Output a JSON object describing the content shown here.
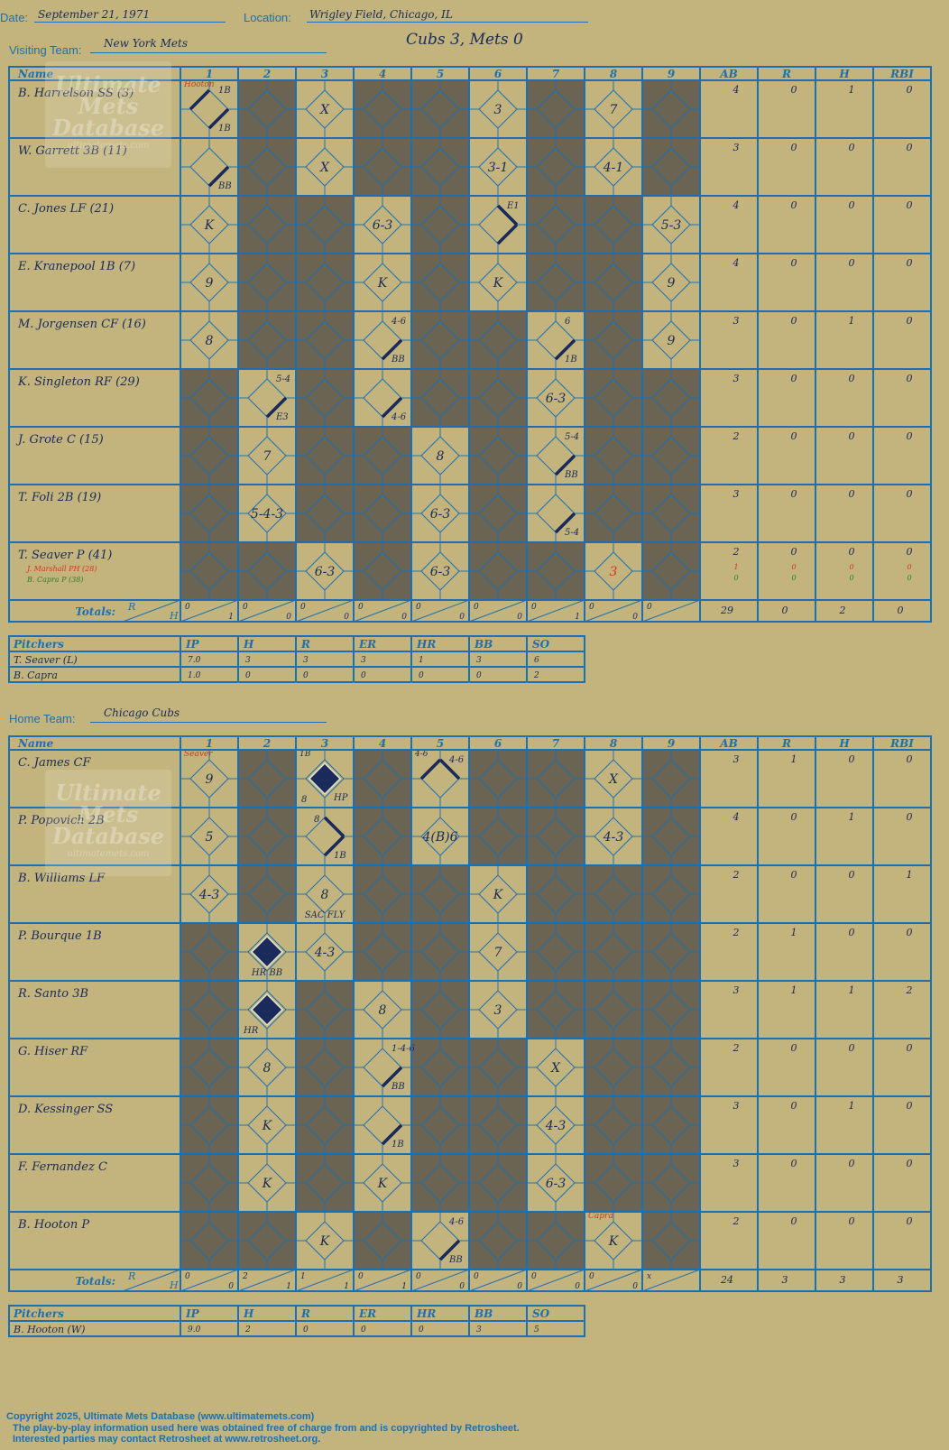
{
  "header": {
    "date_label": "Date:",
    "date": "September 21, 1971",
    "location_label": "Location:",
    "location": "Wrigley Field, Chicago, IL",
    "visiting_label": "Visiting Team:",
    "visiting_team": "New York Mets",
    "result": "Cubs 3, Mets 0",
    "home_label": "Home Team:",
    "home_team": "Chicago Cubs"
  },
  "grid_header": {
    "name": "Name",
    "innings": [
      "1",
      "2",
      "3",
      "4",
      "5",
      "6",
      "7",
      "8",
      "9"
    ],
    "stats": [
      "AB",
      "R",
      "H",
      "RBI"
    ],
    "totals_label": "Totals:",
    "r": "R",
    "h": "H"
  },
  "pitcher_header": {
    "label": "Pitchers",
    "cols": [
      "IP",
      "H",
      "R",
      "ER",
      "HR",
      "BB",
      "SO"
    ]
  },
  "watermark": {
    "line1": "Ultimate",
    "line2": "Mets",
    "line3": "Database",
    "url": "ultimatemets.com"
  },
  "visitors": {
    "players": [
      {
        "name": "B. Harrelson SS (3)",
        "stats": [
          "4",
          "0",
          "1",
          "0"
        ]
      },
      {
        "name": "W. Garrett 3B (11)",
        "stats": [
          "3",
          "0",
          "0",
          "0"
        ]
      },
      {
        "name": "C. Jones LF (21)",
        "stats": [
          "4",
          "0",
          "0",
          "0"
        ]
      },
      {
        "name": "E. Kranepool 1B (7)",
        "stats": [
          "4",
          "0",
          "0",
          "0"
        ]
      },
      {
        "name": "M. Jorgensen CF (16)",
        "stats": [
          "3",
          "0",
          "1",
          "0"
        ]
      },
      {
        "name": "K. Singleton RF (29)",
        "stats": [
          "3",
          "0",
          "0",
          "0"
        ]
      },
      {
        "name": "J. Grote C (15)",
        "stats": [
          "2",
          "0",
          "0",
          "0"
        ]
      },
      {
        "name": "T. Foli 2B (19)",
        "stats": [
          "3",
          "0",
          "0",
          "0"
        ]
      },
      {
        "name": "T. Seaver P (41)",
        "stats": [
          "2",
          "0",
          "0",
          "0"
        ],
        "subs": [
          {
            "name": "J. Marshall PH (28)",
            "stats": [
              "1",
              "0",
              "0",
              "0"
            ]
          },
          {
            "name": "B. Capra P (38)",
            "stats": [
              "0",
              "0",
              "0",
              "0"
            ]
          }
        ]
      }
    ],
    "active_cells": [
      [
        1,
        3,
        6,
        8
      ],
      [
        1,
        3,
        6,
        8
      ],
      [
        1,
        4,
        6,
        9
      ],
      [
        1,
        4,
        6,
        9
      ],
      [
        1,
        4,
        7,
        9
      ],
      [
        2,
        4,
        7
      ],
      [
        2,
        5,
        7
      ],
      [
        2,
        5,
        7
      ],
      [
        3,
        5,
        8
      ]
    ],
    "plays": [
      {
        "r": 0,
        "c": 1,
        "t": "Hooton",
        "pos": "tl",
        "red": true
      },
      {
        "r": 0,
        "c": 1,
        "t": "1B",
        "pos": "tr"
      },
      {
        "r": 0,
        "c": 1,
        "t": "1B",
        "pos": "br"
      },
      {
        "r": 0,
        "c": 3,
        "t": "X",
        "pos": "c"
      },
      {
        "r": 0,
        "c": 6,
        "t": "3",
        "pos": "c"
      },
      {
        "r": 0,
        "c": 8,
        "t": "7",
        "pos": "c"
      },
      {
        "r": 1,
        "c": 1,
        "t": "BB",
        "pos": "br"
      },
      {
        "r": 1,
        "c": 3,
        "t": "X",
        "pos": "c"
      },
      {
        "r": 1,
        "c": 6,
        "t": "3-1",
        "pos": "c"
      },
      {
        "r": 1,
        "c": 8,
        "t": "4-1",
        "pos": "c"
      },
      {
        "r": 2,
        "c": 1,
        "t": "K",
        "pos": "c"
      },
      {
        "r": 2,
        "c": 4,
        "t": "6-3",
        "pos": "c"
      },
      {
        "r": 2,
        "c": 6,
        "t": "E1",
        "pos": "tr"
      },
      {
        "r": 2,
        "c": 9,
        "t": "5-3",
        "pos": "c"
      },
      {
        "r": 3,
        "c": 1,
        "t": "9",
        "pos": "c"
      },
      {
        "r": 3,
        "c": 4,
        "t": "K",
        "pos": "c"
      },
      {
        "r": 3,
        "c": 6,
        "t": "K",
        "pos": "c"
      },
      {
        "r": 3,
        "c": 9,
        "t": "9",
        "pos": "c"
      },
      {
        "r": 4,
        "c": 1,
        "t": "8",
        "pos": "c"
      },
      {
        "r": 4,
        "c": 4,
        "t": "4-6",
        "pos": "tr"
      },
      {
        "r": 4,
        "c": 4,
        "t": "BB",
        "pos": "br"
      },
      {
        "r": 4,
        "c": 7,
        "t": "6",
        "pos": "tr"
      },
      {
        "r": 4,
        "c": 7,
        "t": "1B",
        "pos": "br"
      },
      {
        "r": 4,
        "c": 9,
        "t": "9",
        "pos": "c"
      },
      {
        "r": 5,
        "c": 2,
        "t": "5-4",
        "pos": "tr"
      },
      {
        "r": 5,
        "c": 2,
        "t": "E3",
        "pos": "br"
      },
      {
        "r": 5,
        "c": 4,
        "t": "4-6",
        "pos": "br"
      },
      {
        "r": 5,
        "c": 7,
        "t": "6-3",
        "pos": "c"
      },
      {
        "r": 6,
        "c": 2,
        "t": "7",
        "pos": "c"
      },
      {
        "r": 6,
        "c": 5,
        "t": "8",
        "pos": "c"
      },
      {
        "r": 6,
        "c": 7,
        "t": "5-4",
        "pos": "tr"
      },
      {
        "r": 6,
        "c": 7,
        "t": "BB",
        "pos": "br"
      },
      {
        "r": 7,
        "c": 2,
        "t": "5-4-3",
        "pos": "c"
      },
      {
        "r": 7,
        "c": 5,
        "t": "6-3",
        "pos": "c"
      },
      {
        "r": 7,
        "c": 7,
        "t": "5-4",
        "pos": "br"
      },
      {
        "r": 8,
        "c": 3,
        "t": "6-3",
        "pos": "c"
      },
      {
        "r": 8,
        "c": 5,
        "t": "6-3",
        "pos": "c"
      },
      {
        "r": 8,
        "c": 8,
        "t": "3",
        "pos": "c",
        "red": true
      }
    ],
    "path_lines": [
      {
        "r": 0,
        "c": 1,
        "seg": "13"
      },
      {
        "r": 1,
        "c": 1,
        "seg": "1"
      },
      {
        "r": 2,
        "c": 6,
        "seg": "12"
      },
      {
        "r": 4,
        "c": 4,
        "seg": "1"
      },
      {
        "r": 4,
        "c": 7,
        "seg": "1"
      },
      {
        "r": 5,
        "c": 2,
        "seg": "1"
      },
      {
        "r": 5,
        "c": 4,
        "seg": "1"
      },
      {
        "r": 6,
        "c": 7,
        "seg": "1"
      },
      {
        "r": 7,
        "c": 7,
        "seg": "1"
      }
    ],
    "scored": [],
    "totals": [
      [
        "0",
        "1"
      ],
      [
        "0",
        "0"
      ],
      [
        "0",
        "0"
      ],
      [
        "0",
        "0"
      ],
      [
        "0",
        "0"
      ],
      [
        "0",
        "0"
      ],
      [
        "0",
        "1"
      ],
      [
        "0",
        "0"
      ],
      [
        "0",
        ""
      ]
    ],
    "totals_stats": [
      "29",
      "0",
      "2",
      "0"
    ],
    "pitchers": [
      {
        "name": "T. Seaver (L)",
        "stats": [
          "7.0",
          "3",
          "3",
          "3",
          "1",
          "3",
          "6"
        ]
      },
      {
        "name": "B. Capra",
        "stats": [
          "1.0",
          "0",
          "0",
          "0",
          "0",
          "0",
          "2"
        ]
      }
    ]
  },
  "home": {
    "players": [
      {
        "name": "C. James CF",
        "stats": [
          "3",
          "1",
          "0",
          "0"
        ]
      },
      {
        "name": "P. Popovich 2B",
        "stats": [
          "4",
          "0",
          "1",
          "0"
        ]
      },
      {
        "name": "B. Williams LF",
        "stats": [
          "2",
          "0",
          "0",
          "1"
        ]
      },
      {
        "name": "P. Bourque 1B",
        "stats": [
          "2",
          "1",
          "0",
          "0"
        ]
      },
      {
        "name": "R. Santo 3B",
        "stats": [
          "3",
          "1",
          "1",
          "2"
        ]
      },
      {
        "name": "G. Hiser RF",
        "stats": [
          "2",
          "0",
          "0",
          "0"
        ]
      },
      {
        "name": "D. Kessinger SS",
        "stats": [
          "3",
          "0",
          "1",
          "0"
        ]
      },
      {
        "name": "F. Fernandez C",
        "stats": [
          "3",
          "0",
          "0",
          "0"
        ]
      },
      {
        "name": "B. Hooton P",
        "stats": [
          "2",
          "0",
          "0",
          "0"
        ]
      }
    ],
    "active_cells": [
      [
        1,
        3,
        5,
        8
      ],
      [
        1,
        3,
        5,
        8
      ],
      [
        1,
        3,
        6
      ],
      [
        2,
        3,
        6
      ],
      [
        2,
        4,
        6
      ],
      [
        2,
        4,
        7
      ],
      [
        2,
        4,
        7
      ],
      [
        2,
        4,
        7
      ],
      [
        3,
        5,
        8
      ]
    ],
    "plays": [
      {
        "r": 0,
        "c": 1,
        "t": "Seaver",
        "pos": "tl",
        "red": true
      },
      {
        "r": 0,
        "c": 1,
        "t": "9",
        "pos": "c"
      },
      {
        "r": 0,
        "c": 3,
        "t": "1B",
        "pos": "tl"
      },
      {
        "r": 0,
        "c": 3,
        "t": "8",
        "pos": "bl"
      },
      {
        "r": 0,
        "c": 3,
        "t": "HP",
        "pos": "br"
      },
      {
        "r": 0,
        "c": 5,
        "t": "4-6",
        "pos": "tl"
      },
      {
        "r": 0,
        "c": 5,
        "t": "4-6",
        "pos": "tr"
      },
      {
        "r": 0,
        "c": 8,
        "t": "X",
        "pos": "c"
      },
      {
        "r": 1,
        "c": 1,
        "t": "5",
        "pos": "c"
      },
      {
        "r": 1,
        "c": 3,
        "t": "8",
        "pos": "tl2"
      },
      {
        "r": 1,
        "c": 3,
        "t": "1B",
        "pos": "br"
      },
      {
        "r": 1,
        "c": 5,
        "t": "4(B)6",
        "pos": "c"
      },
      {
        "r": 1,
        "c": 8,
        "t": "4-3",
        "pos": "c"
      },
      {
        "r": 2,
        "c": 1,
        "t": "4-3",
        "pos": "c"
      },
      {
        "r": 2,
        "c": 3,
        "t": "8",
        "pos": "c"
      },
      {
        "r": 2,
        "c": 3,
        "t": "SAC FLY",
        "pos": "bc"
      },
      {
        "r": 2,
        "c": 6,
        "t": "K",
        "pos": "c"
      },
      {
        "r": 3,
        "c": 2,
        "t": "HR BB",
        "pos": "bc"
      },
      {
        "r": 3,
        "c": 3,
        "t": "4-3",
        "pos": "c"
      },
      {
        "r": 3,
        "c": 6,
        "t": "7",
        "pos": "c"
      },
      {
        "r": 4,
        "c": 2,
        "t": "HR",
        "pos": "bl"
      },
      {
        "r": 4,
        "c": 4,
        "t": "8",
        "pos": "c"
      },
      {
        "r": 4,
        "c": 6,
        "t": "3",
        "pos": "c"
      },
      {
        "r": 5,
        "c": 2,
        "t": "8",
        "pos": "c"
      },
      {
        "r": 5,
        "c": 4,
        "t": "1-4-6",
        "pos": "tr"
      },
      {
        "r": 5,
        "c": 4,
        "t": "BB",
        "pos": "br"
      },
      {
        "r": 5,
        "c": 7,
        "t": "X",
        "pos": "c"
      },
      {
        "r": 6,
        "c": 2,
        "t": "K",
        "pos": "c"
      },
      {
        "r": 6,
        "c": 4,
        "t": "1B",
        "pos": "br"
      },
      {
        "r": 6,
        "c": 7,
        "t": "4-3",
        "pos": "c"
      },
      {
        "r": 7,
        "c": 2,
        "t": "K",
        "pos": "c"
      },
      {
        "r": 7,
        "c": 4,
        "t": "K",
        "pos": "c"
      },
      {
        "r": 7,
        "c": 7,
        "t": "6-3",
        "pos": "c"
      },
      {
        "r": 8,
        "c": 3,
        "t": "K",
        "pos": "c"
      },
      {
        "r": 8,
        "c": 5,
        "t": "4-6",
        "pos": "tr"
      },
      {
        "r": 8,
        "c": 5,
        "t": "BB",
        "pos": "br"
      },
      {
        "r": 8,
        "c": 8,
        "t": "Capra",
        "pos": "tl",
        "red": true
      },
      {
        "r": 8,
        "c": 8,
        "t": "K",
        "pos": "c"
      }
    ],
    "path_lines": [
      {
        "r": 0,
        "c": 5,
        "seg": "23"
      },
      {
        "r": 1,
        "c": 3,
        "seg": "12"
      },
      {
        "r": 5,
        "c": 4,
        "seg": "1"
      },
      {
        "r": 6,
        "c": 4,
        "seg": "1"
      },
      {
        "r": 8,
        "c": 5,
        "seg": "1"
      }
    ],
    "scored": [
      {
        "r": 0,
        "c": 3
      },
      {
        "r": 3,
        "c": 2
      },
      {
        "r": 4,
        "c": 2
      }
    ],
    "totals": [
      [
        "0",
        "0"
      ],
      [
        "2",
        "1"
      ],
      [
        "1",
        "1"
      ],
      [
        "0",
        "1"
      ],
      [
        "0",
        "0"
      ],
      [
        "0",
        "0"
      ],
      [
        "0",
        "0"
      ],
      [
        "0",
        "0"
      ],
      [
        "x",
        ""
      ]
    ],
    "totals_stats": [
      "24",
      "3",
      "3",
      "3"
    ],
    "pitchers": [
      {
        "name": "B. Hooton (W)",
        "stats": [
          "9.0",
          "2",
          "0",
          "0",
          "0",
          "3",
          "5"
        ]
      }
    ]
  },
  "footer": {
    "line1": "Copyright 2025, Ultimate Mets Database (www.ultimatemets.com)",
    "line2": "The play-by-play information used here was obtained free of charge from and is copyrighted by Retrosheet.",
    "line3": "Interested parties may contact Retrosheet at www.retrosheet.org."
  },
  "colors": {
    "paper": "#c2b47c",
    "blank": "#6b6452",
    "line": "#1d6fb3",
    "ink": "#1a2a5a",
    "red": "#e0301e",
    "green": "#2f7d2f"
  }
}
